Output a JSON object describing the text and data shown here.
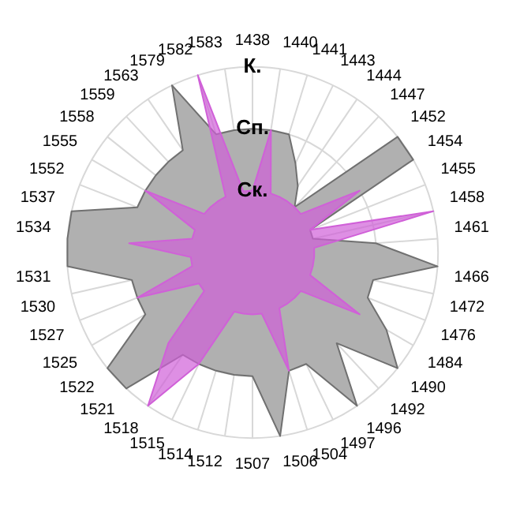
{
  "chart_data": {
    "type": "radar",
    "categories": [
      "1438",
      "1440",
      "1441",
      "1443",
      "1444",
      "1447",
      "1452",
      "1454",
      "1455",
      "1458",
      "1461",
      "1466",
      "1472",
      "1476",
      "1484",
      "1490",
      "1492",
      "1496",
      "1497",
      "1504",
      "1506",
      "1507",
      "1512",
      "1514",
      "1515",
      "1518",
      "1521",
      "1522",
      "1525",
      "1527",
      "1530",
      "1531",
      "1534",
      "1537",
      "1552",
      "1555",
      "1558",
      "1559",
      "1563",
      "1579",
      "1582",
      "1583"
    ],
    "series": [
      {
        "color": "#b0b0b0",
        "values": [
          2,
          2,
          2,
          1.6,
          1.3,
          1,
          3,
          3,
          1,
          1,
          2,
          3,
          2,
          2,
          2.5,
          3,
          2,
          3,
          2,
          2,
          3,
          2,
          2,
          2,
          2,
          2,
          3,
          3,
          2,
          2,
          2,
          3,
          3,
          3,
          2,
          2,
          2,
          2,
          2,
          3,
          2,
          2
        ]
      },
      {
        "color": "#d060d8",
        "values": [
          1,
          2,
          1,
          1,
          1,
          1,
          1,
          2,
          1,
          3,
          1,
          1,
          1,
          1,
          2,
          1,
          1,
          1,
          1,
          2,
          1,
          1,
          1,
          1,
          2,
          3,
          2,
          1,
          1,
          2,
          1,
          1,
          2,
          1,
          1,
          2,
          1,
          1,
          1,
          1,
          3,
          1
        ]
      }
    ],
    "ylim": [
      0,
      3
    ],
    "yticks": [
      {
        "value": 1,
        "label": "Ск."
      },
      {
        "value": 2,
        "label": "Сп."
      },
      {
        "value": 3,
        "label": "К."
      }
    ],
    "grid": true,
    "legend": false,
    "marker": "none"
  }
}
